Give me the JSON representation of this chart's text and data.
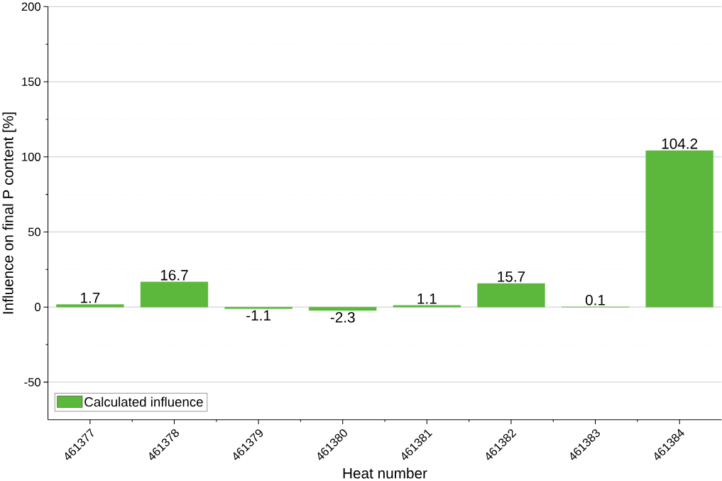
{
  "chart_data": {
    "type": "bar",
    "xlabel": "Heat number",
    "ylabel": "Influence on final P content [%]",
    "categories": [
      "461377",
      "461378",
      "461379",
      "461380",
      "461381",
      "461382",
      "461383",
      "461384"
    ],
    "series": [
      {
        "name": "Calculated influence",
        "color": "#5cb83c",
        "values": [
          1.7,
          16.7,
          -1.1,
          -2.3,
          1.1,
          15.7,
          0.1,
          104.2
        ]
      }
    ],
    "ylim": [
      -75,
      200
    ],
    "yticks": [
      -50,
      {
        "value": -25,
        "label": null
      },
      0,
      {
        "value": 25,
        "label": null
      },
      50,
      {
        "value": 75,
        "label": null
      },
      100,
      {
        "value": 125,
        "label": null
      },
      150,
      {
        "value": 175,
        "label": null
      },
      200
    ],
    "grid": "y",
    "legend": "bottom left",
    "data_labels": true
  }
}
